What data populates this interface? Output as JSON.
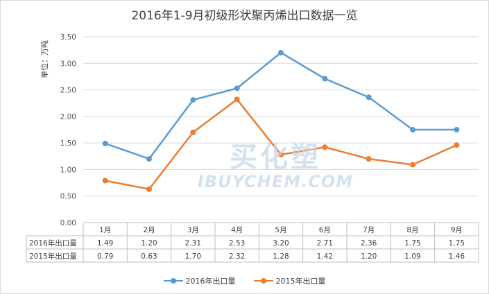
{
  "chart_data": {
    "type": "line",
    "title": "2016年1-9月初级形状聚丙烯出口数据一览",
    "ylabel": "单位：万吨",
    "xlabel": "",
    "ylim": [
      0,
      3.5
    ],
    "y_ticks": [
      "0.00",
      "0.50",
      "1.00",
      "1.50",
      "2.00",
      "2.50",
      "3.00",
      "3.50"
    ],
    "grid": true,
    "legend_position": "bottom",
    "categories": [
      "1月",
      "2月",
      "3月",
      "4月",
      "5月",
      "6月",
      "7月",
      "8月",
      "9月"
    ],
    "series": [
      {
        "name": "2016年出口量",
        "color": "#5b9bd5",
        "values": [
          1.49,
          1.2,
          2.31,
          2.53,
          3.2,
          2.71,
          2.36,
          1.75,
          1.75
        ],
        "labels": [
          "1.49",
          "1.20",
          "2.31",
          "2.53",
          "3.20",
          "2.71",
          "2.36",
          "1.75",
          "1.75"
        ]
      },
      {
        "name": "2015年出口量",
        "color": "#ed7d31",
        "values": [
          0.79,
          0.63,
          1.7,
          2.32,
          1.28,
          1.42,
          1.2,
          1.09,
          1.46
        ],
        "labels": [
          "0.79",
          "0.63",
          "1.70",
          "2.32",
          "1.28",
          "1.42",
          "1.20",
          "1.09",
          "1.46"
        ]
      }
    ]
  },
  "watermark": {
    "line1": "买化塑",
    "line2": "IBUYCHEM.COM"
  }
}
